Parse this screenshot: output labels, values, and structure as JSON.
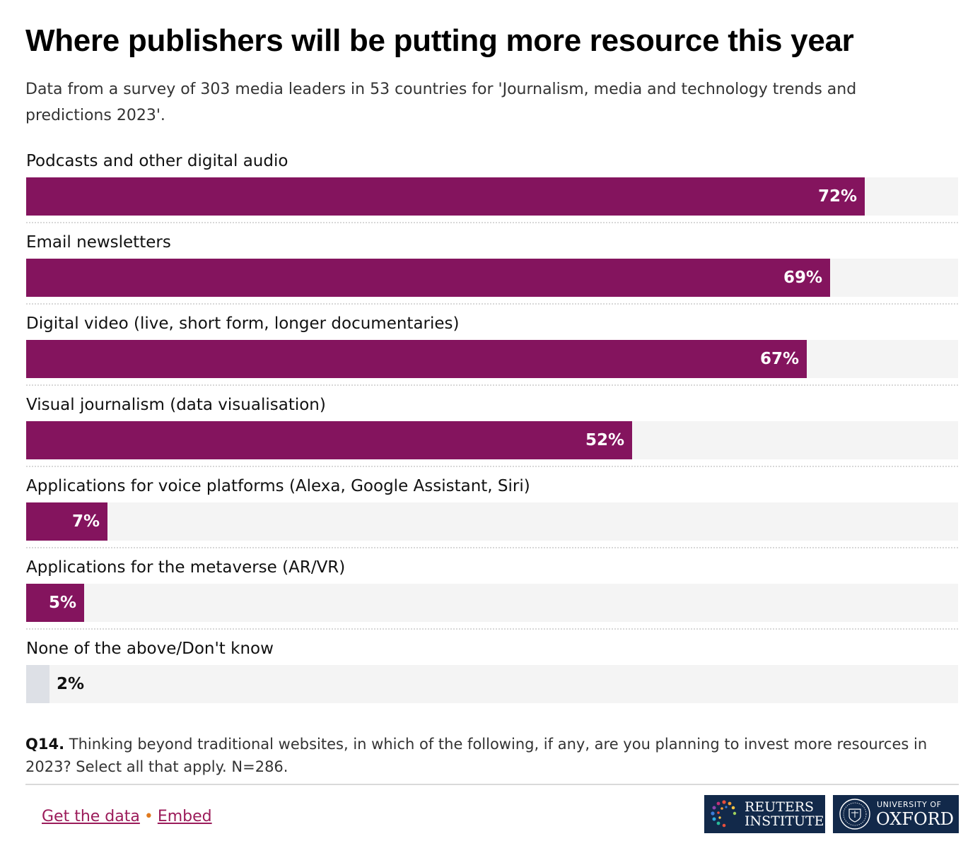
{
  "title": "Where publishers will be putting more resource this year",
  "subtitle": "Data from a survey of 303 media leaders in 53 countries for 'Journalism, media and technology trends and predictions 2023'.",
  "colors": {
    "bar": "#84145e",
    "bar_muted": "#dde0e6",
    "track": "#f4f4f4",
    "link": "#9b1b5a",
    "separator_dot": "#e07a1f",
    "logo_bg": "#12294a"
  },
  "chart_data": {
    "type": "bar",
    "orientation": "horizontal",
    "categories": [
      "Podcasts and other digital audio",
      "Email newsletters",
      "Digital video (live, short form, longer documentaries)",
      "Visual journalism (data visualisation)",
      "Applications for voice platforms (Alexa, Google Assistant, Siri)",
      "Applications for the metaverse (AR/VR)",
      "None of the above/Don't know"
    ],
    "values": [
      72,
      69,
      67,
      52,
      7,
      5,
      2
    ],
    "value_labels": [
      "72%",
      "69%",
      "67%",
      "52%",
      "7%",
      "5%",
      "2%"
    ],
    "xlim": [
      0,
      80
    ],
    "muted_categories": [
      "None of the above/Don't know"
    ],
    "grid": false,
    "legend": "none"
  },
  "note": {
    "question_label": "Q14.",
    "question_text": " Thinking beyond traditional websites, in which of the following, if any, are you planning to invest more resources in 2023? Select all that apply. N=286."
  },
  "footer": {
    "get_data_label": "Get the data",
    "separator": "•",
    "embed_label": "Embed",
    "logo_reuters_line1": "REUTERS",
    "logo_reuters_line2": "INSTITUTE",
    "logo_oxford_line1": "UNIVERSITY OF",
    "logo_oxford_line2": "OXFORD"
  }
}
